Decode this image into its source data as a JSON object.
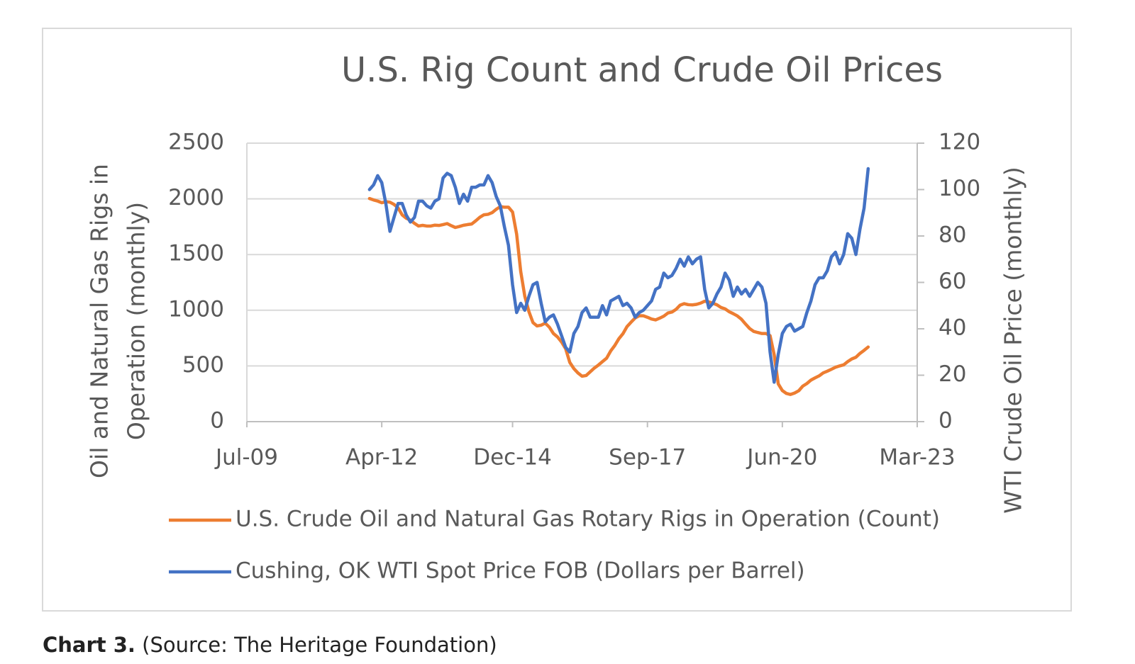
{
  "chart_data": {
    "type": "line",
    "title": "U.S. Rig Count and Crude Oil Prices",
    "y_label": [
      "Oil  and Natural Gas Rigs in",
      "Operation (monthly)"
    ],
    "y2_label": "WTI Crude Oil Price (monthly)",
    "x": [
      "2012-01",
      "2012-02",
      "2012-03",
      "2012-04",
      "2012-05",
      "2012-06",
      "2012-07",
      "2012-08",
      "2012-09",
      "2012-10",
      "2012-11",
      "2012-12",
      "2013-01",
      "2013-02",
      "2013-03",
      "2013-04",
      "2013-05",
      "2013-06",
      "2013-07",
      "2013-08",
      "2013-09",
      "2013-10",
      "2013-11",
      "2013-12",
      "2014-01",
      "2014-02",
      "2014-03",
      "2014-04",
      "2014-05",
      "2014-06",
      "2014-07",
      "2014-08",
      "2014-09",
      "2014-10",
      "2014-11",
      "2014-12",
      "2015-01",
      "2015-02",
      "2015-03",
      "2015-04",
      "2015-05",
      "2015-06",
      "2015-07",
      "2015-08",
      "2015-09",
      "2015-10",
      "2015-11",
      "2015-12",
      "2016-01",
      "2016-02",
      "2016-03",
      "2016-04",
      "2016-05",
      "2016-06",
      "2016-07",
      "2016-08",
      "2016-09",
      "2016-10",
      "2016-11",
      "2016-12",
      "2017-01",
      "2017-02",
      "2017-03",
      "2017-04",
      "2017-05",
      "2017-06",
      "2017-07",
      "2017-08",
      "2017-09",
      "2017-10",
      "2017-11",
      "2017-12",
      "2018-01",
      "2018-02",
      "2018-03",
      "2018-04",
      "2018-05",
      "2018-06",
      "2018-07",
      "2018-08",
      "2018-09",
      "2018-10",
      "2018-11",
      "2018-12",
      "2019-01",
      "2019-02",
      "2019-03",
      "2019-04",
      "2019-05",
      "2019-06",
      "2019-07",
      "2019-08",
      "2019-09",
      "2019-10",
      "2019-11",
      "2019-12",
      "2020-01",
      "2020-02",
      "2020-03",
      "2020-04",
      "2020-05",
      "2020-06",
      "2020-07",
      "2020-08",
      "2020-09",
      "2020-10",
      "2020-11",
      "2020-12",
      "2021-01",
      "2021-02",
      "2021-03",
      "2021-04",
      "2021-05",
      "2021-06",
      "2021-07",
      "2021-08",
      "2021-09",
      "2021-10",
      "2021-11",
      "2021-12",
      "2022-01",
      "2022-02",
      "2022-03"
    ],
    "xlim": [
      "2009-07",
      "2023-03"
    ],
    "xticks": [
      {
        "value": "2009-07",
        "label": "Jul-09"
      },
      {
        "value": "2012-04",
        "label": "Apr-12"
      },
      {
        "value": "2014-12",
        "label": "Dec-14"
      },
      {
        "value": "2017-09",
        "label": "Sep-17"
      },
      {
        "value": "2020-06",
        "label": "Jun-20"
      },
      {
        "value": "2023-03",
        "label": "Mar-23"
      }
    ],
    "ylim": [
      0,
      2500
    ],
    "yticks": [
      0,
      500,
      1000,
      1500,
      2000,
      2500
    ],
    "y2lim": [
      0,
      120
    ],
    "y2ticks": [
      0,
      20,
      40,
      60,
      80,
      100,
      120
    ],
    "grid": true,
    "series": [
      {
        "name": "U.S. Crude Oil and Natural Gas Rotary Rigs in Operation (Count)",
        "color": "#ed7d31",
        "values": [
          2003,
          1990,
          1980,
          1965,
          1975,
          1970,
          1950,
          1918,
          1856,
          1826,
          1809,
          1780,
          1756,
          1762,
          1756,
          1756,
          1764,
          1761,
          1769,
          1778,
          1759,
          1743,
          1752,
          1763,
          1769,
          1774,
          1803,
          1835,
          1857,
          1861,
          1876,
          1906,
          1930,
          1925,
          1925,
          1882,
          1683,
          1348,
          1125,
          988,
          889,
          859,
          866,
          884,
          848,
          791,
          760,
          714,
          654,
          532,
          476,
          437,
          408,
          414,
          447,
          481,
          508,
          539,
          569,
          634,
          683,
          744,
          789,
          853,
          893,
          931,
          951,
          950,
          937,
          921,
          913,
          929,
          947,
          975,
          984,
          1008,
          1046,
          1059,
          1050,
          1048,
          1053,
          1064,
          1081,
          1075,
          1063,
          1049,
          1025,
          1012,
          987,
          969,
          949,
          919,
          876,
          836,
          810,
          800,
          791,
          791,
          772,
          602,
          339,
          279,
          253,
          244,
          257,
          277,
          319,
          342,
          373,
          393,
          411,
          438,
          453,
          470,
          488,
          500,
          510,
          539,
          563,
          578,
          613,
          640,
          670
        ]
      },
      {
        "name": "Cushing, OK WTI Spot Price FOB (Dollars per Barrel)",
        "color": "#4472c4",
        "axis": "y2",
        "values": [
          100,
          102,
          106,
          103,
          94,
          82,
          88,
          94,
          94,
          89,
          86,
          88,
          95,
          95,
          93,
          92,
          95,
          96,
          105,
          107,
          106,
          101,
          94,
          98,
          95,
          101,
          101,
          102,
          102,
          106,
          103,
          97,
          93,
          84,
          76,
          59,
          47,
          51,
          48,
          54,
          59,
          60,
          51,
          43,
          45,
          46,
          42,
          37,
          32,
          30,
          38,
          41,
          47,
          49,
          45,
          45,
          45,
          50,
          46,
          52,
          53,
          54,
          50,
          51,
          49,
          45,
          47,
          48,
          50,
          52,
          57,
          58,
          64,
          62,
          63,
          66,
          70,
          67,
          71,
          68,
          70,
          71,
          57,
          49,
          51,
          55,
          58,
          64,
          61,
          54,
          58,
          55,
          57,
          54,
          57,
          60,
          58,
          51,
          30,
          17,
          29,
          38,
          41,
          42,
          39,
          40,
          41,
          47,
          52,
          59,
          62,
          62,
          65,
          71,
          73,
          68,
          72,
          81,
          79,
          72,
          83,
          92,
          109
        ]
      }
    ]
  },
  "caption": {
    "label": "Chart 3.",
    "text": "(Source: The Heritage Foundation)"
  }
}
